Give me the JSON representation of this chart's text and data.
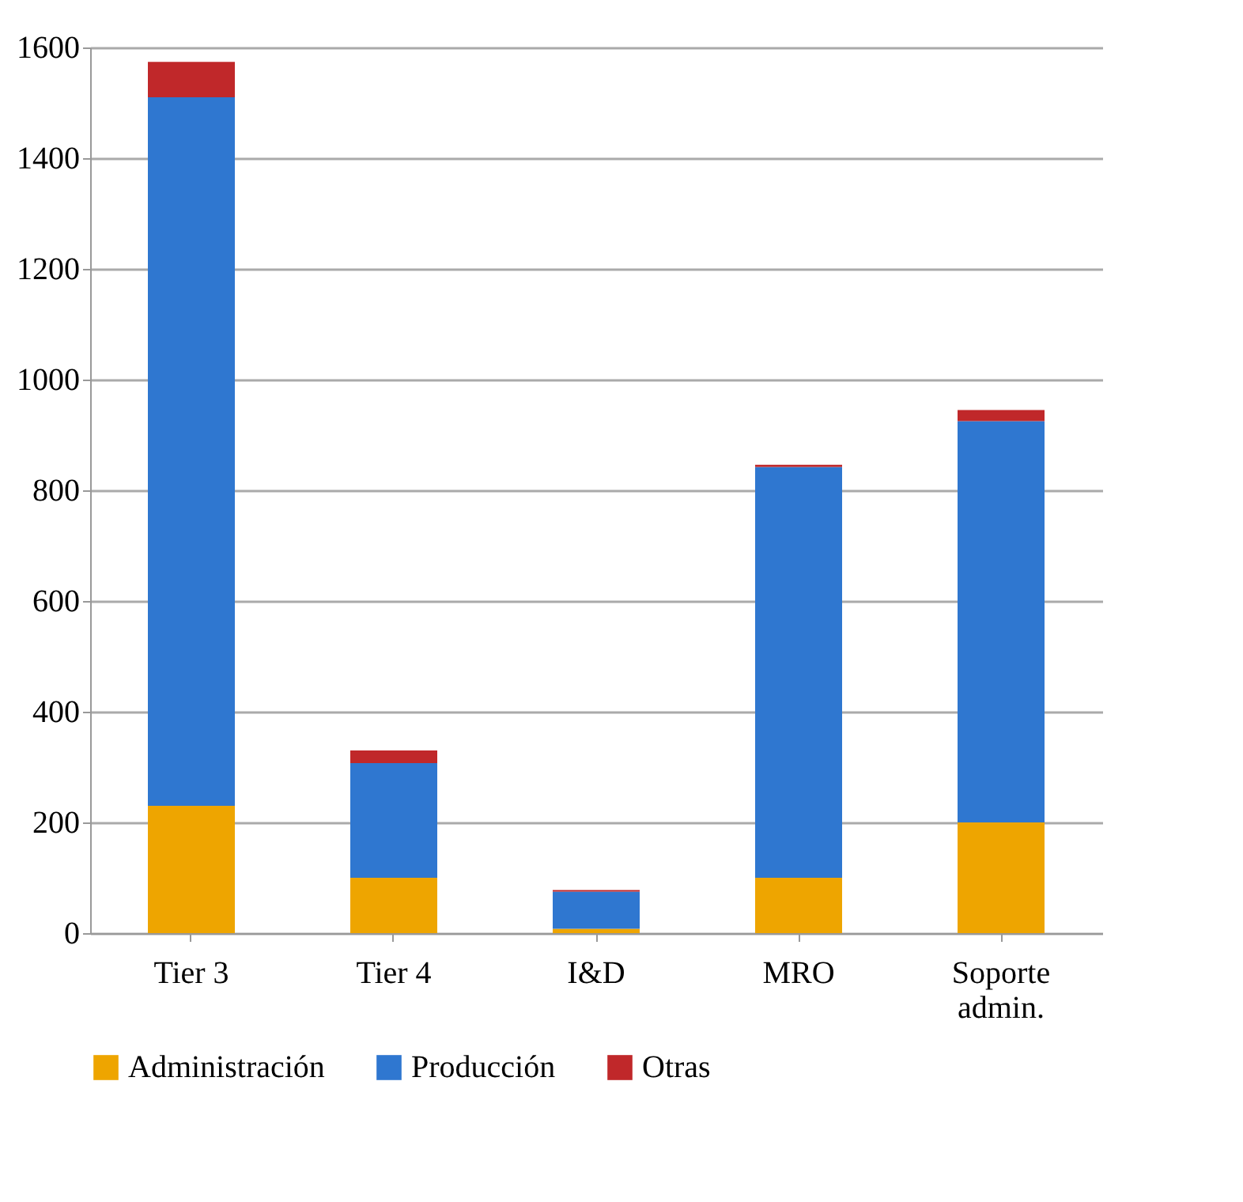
{
  "chart_data": {
    "type": "bar",
    "stacked": true,
    "categories": [
      "Tier 3",
      "Tier 4",
      "I&D",
      "MRO",
      "Soporte admin."
    ],
    "series": [
      {
        "name": "Administración",
        "color": "#eea500",
        "values": [
          230,
          100,
          8,
          100,
          200
        ]
      },
      {
        "name": "Producción",
        "color": "#2f77d0",
        "values": [
          1280,
          207,
          67,
          742,
          725
        ]
      },
      {
        "name": "Otras",
        "color": "#c0282a",
        "values": [
          64,
          23,
          3,
          4,
          20
        ]
      }
    ],
    "ylim": [
      0,
      1600
    ],
    "yticks": [
      0,
      200,
      400,
      600,
      800,
      1000,
      1200,
      1400,
      1600
    ],
    "grid": "y",
    "legend": "bottom"
  }
}
